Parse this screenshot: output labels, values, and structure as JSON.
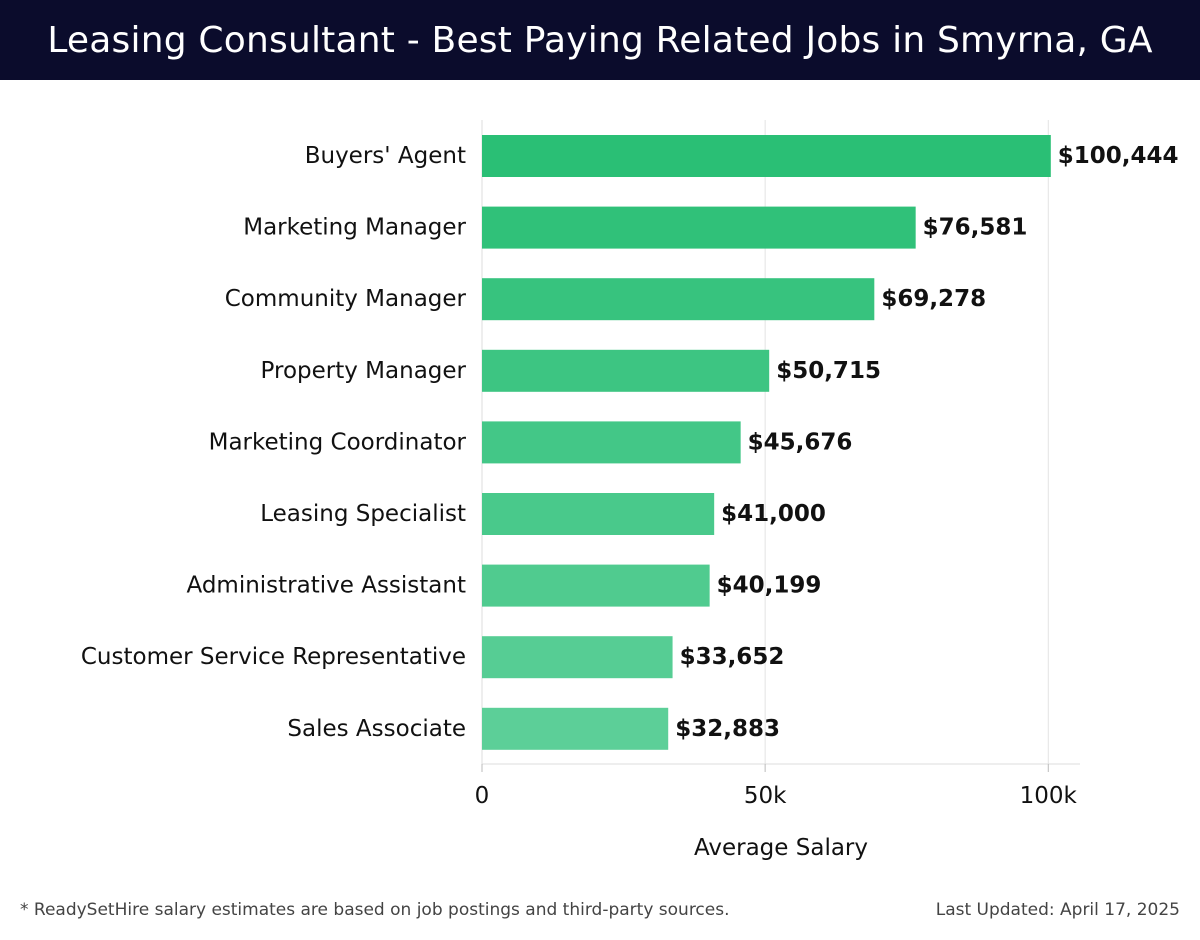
{
  "header": {
    "title": "Leasing Consultant - Best Paying Related Jobs in Smyrna, GA"
  },
  "chart_data": {
    "type": "bar",
    "orientation": "horizontal",
    "categories": [
      "Buyers' Agent",
      "Marketing Manager",
      "Community Manager",
      "Property Manager",
      "Marketing Coordinator",
      "Leasing Specialist",
      "Administrative Assistant",
      "Customer Service Representative",
      "Sales Associate"
    ],
    "values": [
      100444,
      76581,
      69278,
      50715,
      45676,
      41000,
      40199,
      33652,
      32883
    ],
    "value_labels": [
      "$100,444",
      "$76,581",
      "$69,278",
      "$50,715",
      "$45,676",
      "$41,000",
      "$40,199",
      "$33,652",
      "$32,883"
    ],
    "xlabel": "Average Salary",
    "ylabel": "",
    "xlim": [
      0,
      105600
    ],
    "xticks": [
      0,
      50000,
      100000
    ],
    "xtick_labels": [
      "0",
      "50k",
      "100k"
    ],
    "grid": "vertical",
    "colors": {
      "bar_top": "#2abf75",
      "bar_bottom": "#5ccf98"
    }
  },
  "footer": {
    "note": "* ReadySetHire salary estimates are based on job postings and third-party sources.",
    "updated": "Last Updated: April 17, 2025"
  }
}
